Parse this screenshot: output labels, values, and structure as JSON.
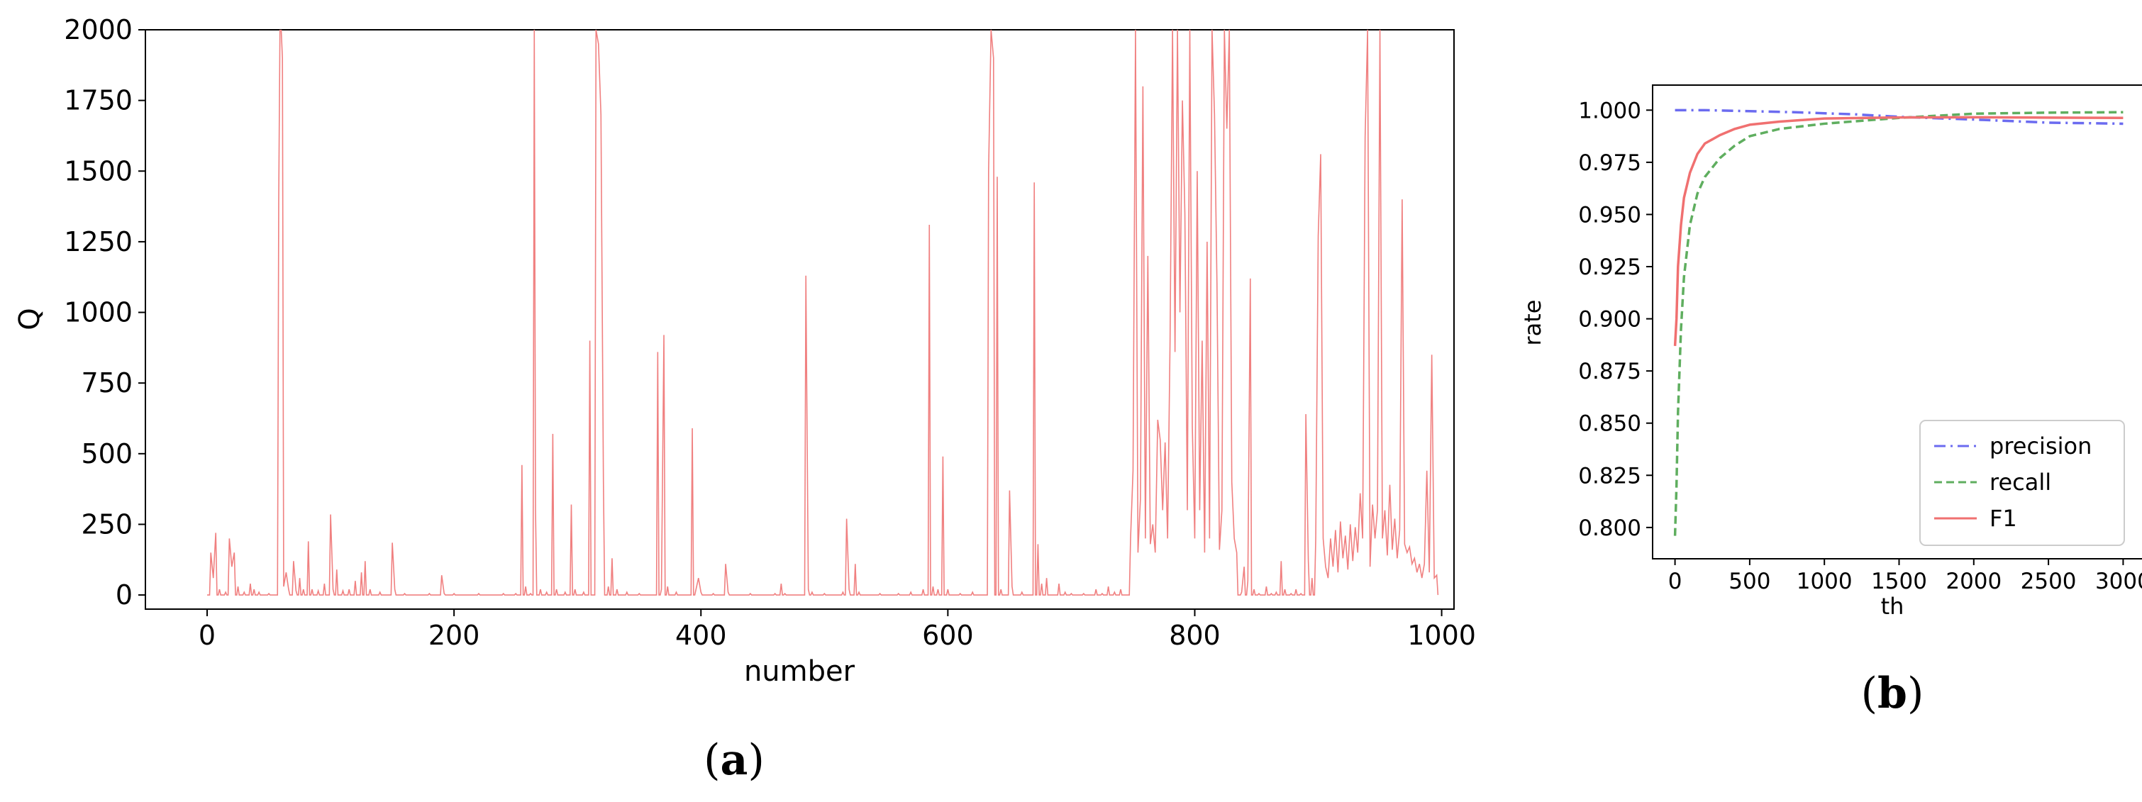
{
  "chart_data": [
    {
      "panel": "(a)",
      "panel_letter": "a",
      "type": "line",
      "xlabel": "number",
      "ylabel": "Q",
      "xlim": [
        -50,
        1010
      ],
      "ylim": [
        -50,
        2000
      ],
      "xticks": [
        0,
        200,
        400,
        600,
        800,
        1000
      ],
      "yticks": [
        0,
        250,
        500,
        750,
        1000,
        1250,
        1500,
        1750,
        2000
      ],
      "color": "#f08080",
      "spikes": [
        [
          0,
          0
        ],
        [
          3,
          150
        ],
        [
          5,
          60
        ],
        [
          7,
          220
        ],
        [
          10,
          20
        ],
        [
          15,
          10
        ],
        [
          18,
          200
        ],
        [
          20,
          100
        ],
        [
          22,
          150
        ],
        [
          25,
          30
        ],
        [
          30,
          10
        ],
        [
          35,
          40
        ],
        [
          38,
          20
        ],
        [
          42,
          10
        ],
        [
          50,
          5
        ],
        [
          58,
          1400
        ],
        [
          59,
          2000
        ],
        [
          60,
          2000
        ],
        [
          61,
          1900
        ],
        [
          62,
          30
        ],
        [
          64,
          80
        ],
        [
          66,
          20
        ],
        [
          70,
          120
        ],
        [
          72,
          15
        ],
        [
          75,
          60
        ],
        [
          78,
          20
        ],
        [
          82,
          190
        ],
        [
          85,
          20
        ],
        [
          90,
          15
        ],
        [
          95,
          40
        ],
        [
          100,
          285
        ],
        [
          102,
          20
        ],
        [
          105,
          90
        ],
        [
          110,
          15
        ],
        [
          115,
          20
        ],
        [
          120,
          50
        ],
        [
          125,
          80
        ],
        [
          128,
          120
        ],
        [
          132,
          20
        ],
        [
          140,
          10
        ],
        [
          150,
          185
        ],
        [
          152,
          20
        ],
        [
          160,
          5
        ],
        [
          180,
          5
        ],
        [
          190,
          70
        ],
        [
          192,
          5
        ],
        [
          200,
          5
        ],
        [
          220,
          5
        ],
        [
          240,
          5
        ],
        [
          250,
          5
        ],
        [
          255,
          460
        ],
        [
          258,
          30
        ],
        [
          262,
          5
        ],
        [
          265,
          2000
        ],
        [
          266,
          300
        ],
        [
          270,
          20
        ],
        [
          275,
          10
        ],
        [
          280,
          570
        ],
        [
          283,
          20
        ],
        [
          290,
          10
        ],
        [
          295,
          320
        ],
        [
          298,
          20
        ],
        [
          305,
          10
        ],
        [
          310,
          900
        ],
        [
          315,
          2000
        ],
        [
          317,
          1950
        ],
        [
          319,
          1700
        ],
        [
          321,
          400
        ],
        [
          325,
          30
        ],
        [
          328,
          130
        ],
        [
          332,
          20
        ],
        [
          340,
          10
        ],
        [
          350,
          5
        ],
        [
          365,
          860
        ],
        [
          368,
          20
        ],
        [
          370,
          920
        ],
        [
          373,
          30
        ],
        [
          380,
          10
        ],
        [
          393,
          590
        ],
        [
          396,
          20
        ],
        [
          398,
          60
        ],
        [
          400,
          10
        ],
        [
          410,
          5
        ],
        [
          420,
          110
        ],
        [
          422,
          10
        ],
        [
          440,
          5
        ],
        [
          460,
          5
        ],
        [
          465,
          40
        ],
        [
          468,
          5
        ],
        [
          485,
          1130
        ],
        [
          487,
          20
        ],
        [
          490,
          10
        ],
        [
          500,
          5
        ],
        [
          515,
          10
        ],
        [
          518,
          270
        ],
        [
          520,
          20
        ],
        [
          525,
          110
        ],
        [
          528,
          10
        ],
        [
          545,
          5
        ],
        [
          560,
          5
        ],
        [
          570,
          10
        ],
        [
          580,
          20
        ],
        [
          585,
          1310
        ],
        [
          588,
          30
        ],
        [
          592,
          20
        ],
        [
          596,
          490
        ],
        [
          600,
          20
        ],
        [
          610,
          5
        ],
        [
          620,
          10
        ],
        [
          633,
          1500
        ],
        [
          635,
          2000
        ],
        [
          637,
          1900
        ],
        [
          640,
          1480
        ],
        [
          643,
          20
        ],
        [
          650,
          370
        ],
        [
          652,
          30
        ],
        [
          660,
          10
        ],
        [
          670,
          1460
        ],
        [
          673,
          180
        ],
        [
          676,
          40
        ],
        [
          680,
          60
        ],
        [
          690,
          40
        ],
        [
          695,
          10
        ],
        [
          700,
          5
        ],
        [
          710,
          5
        ],
        [
          720,
          20
        ],
        [
          725,
          5
        ],
        [
          730,
          30
        ],
        [
          735,
          10
        ],
        [
          740,
          20
        ],
        [
          748,
          200
        ],
        [
          750,
          440
        ],
        [
          752,
          2000
        ],
        [
          754,
          150
        ],
        [
          756,
          340
        ],
        [
          758,
          1800
        ],
        [
          760,
          200
        ],
        [
          762,
          1200
        ],
        [
          764,
          180
        ],
        [
          766,
          250
        ],
        [
          768,
          150
        ],
        [
          770,
          620
        ],
        [
          772,
          550
        ],
        [
          774,
          300
        ],
        [
          776,
          540
        ],
        [
          778,
          200
        ],
        [
          780,
          900
        ],
        [
          782,
          2000
        ],
        [
          784,
          860
        ],
        [
          786,
          2000
        ],
        [
          788,
          1000
        ],
        [
          790,
          1750
        ],
        [
          792,
          1350
        ],
        [
          794,
          300
        ],
        [
          796,
          2000
        ],
        [
          798,
          600
        ],
        [
          800,
          200
        ],
        [
          802,
          1500
        ],
        [
          804,
          300
        ],
        [
          806,
          900
        ],
        [
          808,
          150
        ],
        [
          810,
          1250
        ],
        [
          812,
          200
        ],
        [
          814,
          2000
        ],
        [
          816,
          1700
        ],
        [
          818,
          1100
        ],
        [
          820,
          160
        ],
        [
          822,
          300
        ],
        [
          824,
          2000
        ],
        [
          826,
          1650
        ],
        [
          828,
          2000
        ],
        [
          830,
          400
        ],
        [
          832,
          200
        ],
        [
          834,
          150
        ],
        [
          838,
          10
        ],
        [
          840,
          100
        ],
        [
          843,
          50
        ],
        [
          845,
          1120
        ],
        [
          848,
          20
        ],
        [
          852,
          5
        ],
        [
          858,
          30
        ],
        [
          862,
          5
        ],
        [
          866,
          10
        ],
        [
          870,
          120
        ],
        [
          873,
          20
        ],
        [
          878,
          5
        ],
        [
          882,
          20
        ],
        [
          886,
          5
        ],
        [
          890,
          640
        ],
        [
          892,
          120
        ],
        [
          895,
          60
        ],
        [
          898,
          200
        ],
        [
          900,
          1270
        ],
        [
          902,
          1560
        ],
        [
          904,
          200
        ],
        [
          906,
          100
        ],
        [
          908,
          60
        ],
        [
          910,
          200
        ],
        [
          912,
          100
        ],
        [
          914,
          230
        ],
        [
          916,
          80
        ],
        [
          918,
          260
        ],
        [
          920,
          130
        ],
        [
          922,
          210
        ],
        [
          924,
          90
        ],
        [
          926,
          250
        ],
        [
          928,
          120
        ],
        [
          930,
          240
        ],
        [
          932,
          150
        ],
        [
          934,
          360
        ],
        [
          936,
          200
        ],
        [
          938,
          1620
        ],
        [
          940,
          2000
        ],
        [
          942,
          100
        ],
        [
          944,
          320
        ],
        [
          946,
          200
        ],
        [
          948,
          300
        ],
        [
          950,
          2000
        ],
        [
          952,
          200
        ],
        [
          954,
          300
        ],
        [
          956,
          140
        ],
        [
          958,
          390
        ],
        [
          960,
          160
        ],
        [
          962,
          270
        ],
        [
          964,
          130
        ],
        [
          966,
          230
        ],
        [
          968,
          1400
        ],
        [
          970,
          180
        ],
        [
          972,
          150
        ],
        [
          974,
          170
        ],
        [
          976,
          110
        ],
        [
          978,
          130
        ],
        [
          980,
          80
        ],
        [
          982,
          110
        ],
        [
          984,
          60
        ],
        [
          986,
          110
        ],
        [
          988,
          440
        ],
        [
          990,
          80
        ],
        [
          992,
          850
        ],
        [
          994,
          60
        ],
        [
          996,
          70
        ]
      ]
    },
    {
      "panel": "(b)",
      "panel_letter": "b",
      "type": "line",
      "xlabel": "th",
      "ylabel": "rate",
      "xlim": [
        -150,
        3150
      ],
      "ylim": [
        0.785,
        1.012
      ],
      "xticks": [
        0,
        500,
        1000,
        1500,
        2000,
        2500,
        3000
      ],
      "yticks": [
        0.8,
        0.825,
        0.85,
        0.875,
        0.9,
        0.925,
        0.95,
        0.975,
        1.0
      ],
      "ytick_labels": [
        "0.800",
        "0.825",
        "0.850",
        "0.875",
        "0.900",
        "0.925",
        "0.950",
        "0.975",
        "1.000"
      ],
      "legend": {
        "position": "lower-right",
        "entries": [
          "precision",
          "recall",
          "F1"
        ]
      },
      "series": [
        {
          "name": "precision",
          "color": "#6b6bf0",
          "dash": "dash-dot",
          "x": [
            0,
            200,
            500,
            800,
            1000,
            1200,
            1500,
            1800,
            2000,
            2500,
            3000
          ],
          "y": [
            1.0,
            1.0,
            0.9995,
            0.999,
            0.9985,
            0.998,
            0.9968,
            0.996,
            0.9955,
            0.994,
            0.9935
          ]
        },
        {
          "name": "recall",
          "color": "#5fae5f",
          "dash": "dashed",
          "x": [
            0,
            10,
            20,
            40,
            60,
            100,
            150,
            200,
            300,
            400,
            500,
            700,
            1000,
            1500,
            2000,
            2500,
            3000
          ],
          "y": [
            0.796,
            0.82,
            0.855,
            0.895,
            0.92,
            0.945,
            0.96,
            0.968,
            0.977,
            0.983,
            0.9875,
            0.991,
            0.9935,
            0.9963,
            0.9983,
            0.9988,
            0.999
          ]
        },
        {
          "name": "F1",
          "color": "#f07070",
          "dash": "solid",
          "x": [
            0,
            10,
            20,
            40,
            60,
            100,
            150,
            200,
            300,
            400,
            500,
            700,
            1000,
            1500,
            2000,
            2500,
            3000
          ],
          "y": [
            0.887,
            0.9,
            0.925,
            0.945,
            0.958,
            0.97,
            0.979,
            0.984,
            0.988,
            0.991,
            0.993,
            0.9945,
            0.996,
            0.9965,
            0.9966,
            0.9964,
            0.9963
          ]
        }
      ]
    }
  ]
}
